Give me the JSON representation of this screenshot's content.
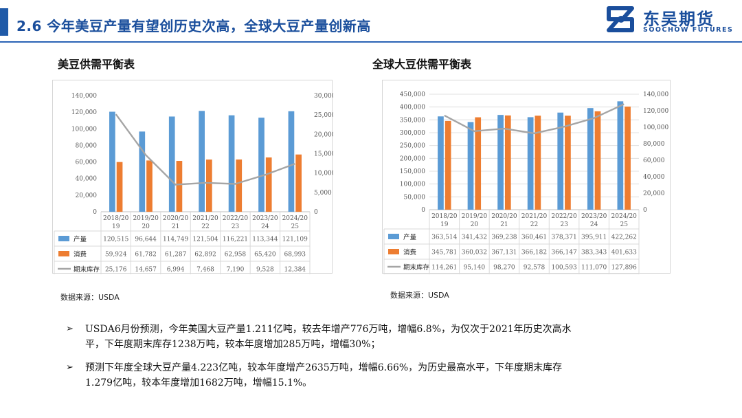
{
  "header": {
    "title": "2.6  今年美豆产量有望创历史次高，全球大豆产量创新高",
    "logo_cn": "东吴期货",
    "logo_en": "SOOCHOW FUTURES",
    "brand_color": "#1a4e9c"
  },
  "colors": {
    "series_a": "#5b9bd5",
    "series_b": "#ed7d31",
    "series_c": "#a5a5a5"
  },
  "charts": [
    {
      "title": "美豆供需平衡表",
      "source": "数据来源：USDA"
    },
    {
      "title": "全球大豆供需平衡表",
      "source": "数据来源：USDA"
    }
  ],
  "chart_data": [
    {
      "type": "bar",
      "categories": [
        "2018/2019",
        "2019/2020",
        "2020/2021",
        "2021/2022",
        "2022/2023",
        "2023/2024",
        "2024/2025"
      ],
      "category_lines": [
        [
          "2018/20",
          "19"
        ],
        [
          "2019/20",
          "20"
        ],
        [
          "2020/20",
          "21"
        ],
        [
          "2021/20",
          "22"
        ],
        [
          "2022/20",
          "23"
        ],
        [
          "2023/20",
          "24"
        ],
        [
          "2024/20",
          "25"
        ]
      ],
      "series": [
        {
          "name": "产量",
          "kind": "bar",
          "axis": "left",
          "values": [
            120515,
            96644,
            114749,
            121504,
            116221,
            113344,
            121109
          ]
        },
        {
          "name": "消费",
          "kind": "bar",
          "axis": "left",
          "values": [
            59924,
            61782,
            61287,
            62892,
            62958,
            65420,
            68993
          ]
        },
        {
          "name": "期末库存",
          "kind": "line",
          "axis": "right",
          "values": [
            25176,
            14657,
            6994,
            7468,
            7190,
            9528,
            12384
          ]
        }
      ],
      "ylim": [
        0,
        140000
      ],
      "yticks": [
        0,
        20000,
        40000,
        60000,
        80000,
        100000,
        120000,
        140000
      ],
      "y2lim": [
        0,
        30000
      ],
      "y2ticks": [
        0,
        5000,
        10000,
        15000,
        20000,
        25000,
        30000
      ],
      "legend": "data-table",
      "grid": false
    },
    {
      "type": "bar",
      "categories": [
        "2018/2019",
        "2019/2020",
        "2020/2021",
        "2021/2022",
        "2022/2023",
        "2023/2024",
        "2024/2025"
      ],
      "category_lines": [
        [
          "2018/20",
          "19"
        ],
        [
          "2019/20",
          "20"
        ],
        [
          "2020/20",
          "21"
        ],
        [
          "2021/20",
          "22"
        ],
        [
          "2022/20",
          "23"
        ],
        [
          "2023/20",
          "24"
        ],
        [
          "2024/20",
          "25"
        ]
      ],
      "series": [
        {
          "name": "产量",
          "kind": "bar",
          "axis": "left",
          "values": [
            363514,
            341432,
            369238,
            360461,
            378371,
            395911,
            422262
          ]
        },
        {
          "name": "消费",
          "kind": "bar",
          "axis": "left",
          "values": [
            345781,
            360032,
            367131,
            366182,
            366147,
            383343,
            401633
          ]
        },
        {
          "name": "期末库存",
          "kind": "line",
          "axis": "right",
          "values": [
            114261,
            95140,
            98270,
            92578,
            100593,
            111070,
            127896
          ]
        }
      ],
      "ylim": [
        0,
        450000
      ],
      "yticks": [
        0,
        50000,
        100000,
        150000,
        200000,
        250000,
        300000,
        350000,
        400000,
        450000
      ],
      "y2lim": [
        0,
        140000
      ],
      "y2ticks": [
        0,
        20000,
        40000,
        60000,
        80000,
        100000,
        120000,
        140000
      ],
      "legend": "data-table",
      "grid": true
    }
  ],
  "bullets": [
    {
      "mark": "➢",
      "line1": "USDA6月份预测，今年美国大豆产量1.211亿吨，较去年增产776万吨，增幅6.8%，为仅次于2021年历史次高水",
      "line2": "平，下年度期末库存1238万吨，较本年度增加285万吨，增幅30%；"
    },
    {
      "mark": "➢",
      "line1": "预测下年度全球大豆产量4.223亿吨，较本年度增产2635万吨，增幅6.66%，为历史最高水平，下年度期末库存",
      "line2": "1.279亿吨，较本年度增加1682万吨，增幅15.1%。"
    }
  ]
}
